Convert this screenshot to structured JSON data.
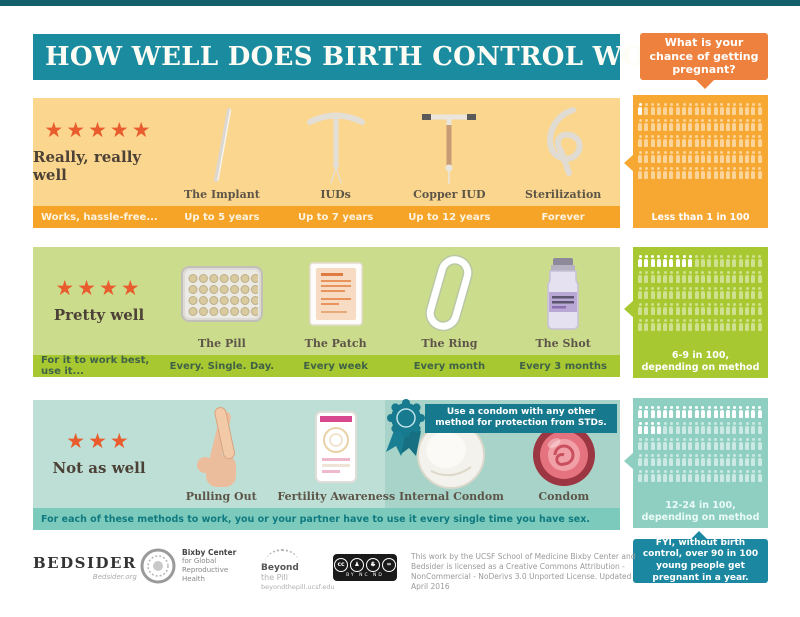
{
  "header": {
    "title": "HOW WELL DOES BIRTH CONTROL WORK?"
  },
  "chance_bubble": {
    "text": "What is your chance of getting pregnant?"
  },
  "colors": {
    "teal_header": "#1b8ba0",
    "orange_accent": "#ee813e",
    "orange_light": "#fbd68e",
    "orange_mid": "#f6a427",
    "green_light": "#ccdc8d",
    "green_mid": "#a8c832",
    "teal_light": "#bedfd6",
    "teal_mid": "#7ccabb",
    "dark_teal": "#16798e",
    "star_orange": "#e95c2e"
  },
  "sections": [
    {
      "stars": 5,
      "rating": "Really, really well",
      "strip_label": "Works, hassle-free...",
      "methods": [
        {
          "name": "The Implant",
          "duration": "Up to 5 years"
        },
        {
          "name": "IUDs",
          "duration": "Up to 7 years"
        },
        {
          "name": "Copper IUD",
          "duration": "Up to 12 years"
        },
        {
          "name": "Sterilization",
          "duration": "Forever"
        }
      ],
      "chance": {
        "caption": "Less than 1 in 100",
        "highlighted": 1,
        "total": 100,
        "per_row": 20
      }
    },
    {
      "stars": 4,
      "rating": "Pretty well",
      "strip_label": "For it to work best, use it...",
      "methods": [
        {
          "name": "The Pill",
          "duration": "Every. Single. Day."
        },
        {
          "name": "The Patch",
          "duration": "Every week"
        },
        {
          "name": "The Ring",
          "duration": "Every month"
        },
        {
          "name": "The Shot",
          "duration": "Every 3 months"
        }
      ],
      "chance": {
        "caption": "6-9 in 100,\ndepending on method",
        "highlighted": 9,
        "total": 100,
        "per_row": 20
      }
    },
    {
      "stars": 3,
      "rating": "Not as well",
      "strip_label": "For each of these methods to work, you or your partner have to use it every single time you have sex.",
      "condom_banner": "Use a condom with any other method for protection from STDs.",
      "methods": [
        {
          "name": "Pulling Out"
        },
        {
          "name": "Fertility Awareness"
        },
        {
          "name": "Internal Condom"
        },
        {
          "name": "Condom"
        }
      ],
      "chance": {
        "caption": "12-24 in 100,\ndepending on method",
        "highlighted": 24,
        "total": 100,
        "per_row": 20
      }
    }
  ],
  "fyi_note": "FYI, without birth control, over 90 in 100 young people get pregnant in a year.",
  "footer": {
    "bedsider": {
      "name": "BEDSIDER",
      "tagline": "Bedsider.org"
    },
    "bixby": {
      "line1": "Bixby Center",
      "line2": "for Global",
      "line3": "Reproductive",
      "line4": "Health"
    },
    "beyond": {
      "line1": "Beyond",
      "line2": "the Pill",
      "line3": "beyondthepill.ucsf.edu"
    },
    "cc": {
      "caption": "BY NC ND",
      "c1": "cc",
      "c2": "♟",
      "c3": "$",
      "c4": "="
    },
    "license": "This work by the UCSF School of Medicine Bixby Center and Bedsider is licensed as a Creative Commons Attribution - NonCommercial - NoDerivs 3.0 Unported License. Updated April 2016"
  }
}
